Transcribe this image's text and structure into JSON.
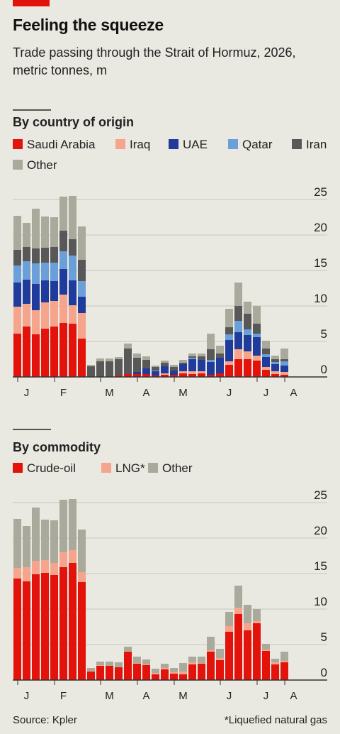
{
  "title": "Feeling the squeeze",
  "subtitle": "Trade passing through the Strait of Hormuz, 2026, metric tonnes, m",
  "source": "Source: Kpler",
  "note": "*Liquefied natural gas",
  "chart_data": [
    {
      "type": "bar",
      "stacked": true,
      "title": "By country of origin",
      "categories": [
        null,
        "J",
        null,
        null,
        null,
        "F",
        null,
        null,
        null,
        null,
        "M",
        null,
        null,
        null,
        "A",
        null,
        null,
        null,
        "M",
        null,
        null,
        null,
        null,
        "J",
        null,
        null,
        null,
        "J",
        null,
        null,
        "A"
      ],
      "ylim": [
        0,
        25
      ],
      "yticks": [
        0,
        5,
        10,
        15,
        20,
        25
      ],
      "grid": true,
      "series": [
        {
          "name": "Saudi Arabia",
          "color": "#e3120b",
          "values": [
            6.1,
            7.1,
            6.0,
            6.8,
            7.1,
            7.6,
            7.5,
            5.4,
            0,
            0,
            0,
            0.2,
            0.4,
            0.4,
            0.4,
            0.2,
            0.3,
            0.3,
            0.5,
            0.4,
            0.5,
            0.3,
            0.5,
            1.7,
            2.5,
            2.5,
            2.3,
            1.0,
            0.4,
            0.3,
            null
          ]
        },
        {
          "name": "Iraq",
          "color": "#f6a48c",
          "values": [
            3.8,
            3.2,
            3.4,
            3.7,
            3.6,
            4.0,
            2.6,
            3.6,
            0,
            0,
            0,
            0,
            0,
            0,
            0,
            0,
            0.2,
            0,
            0.3,
            0.4,
            0.3,
            0,
            0,
            0.5,
            1.4,
            1.1,
            0.7,
            0.4,
            0.4,
            0.4,
            null
          ]
        },
        {
          "name": "UAE",
          "color": "#1f3c9c",
          "values": [
            3.4,
            3.4,
            3.7,
            3.1,
            2.8,
            3.6,
            3.5,
            2.3,
            0,
            0,
            0,
            0,
            0,
            0.3,
            0.8,
            0.6,
            1.0,
            0.6,
            1.0,
            1.7,
            1.6,
            1.8,
            2.2,
            3.0,
            2.4,
            2.3,
            2.6,
            1.4,
            1.0,
            0.9,
            null
          ]
        },
        {
          "name": "Qatar",
          "color": "#6a9fda",
          "values": [
            2.4,
            2.6,
            2.9,
            2.5,
            2.6,
            2.5,
            3.5,
            2.2,
            0,
            0,
            0,
            0,
            0,
            0,
            0,
            0.1,
            0,
            0,
            0,
            0.2,
            0,
            0.3,
            0,
            0.8,
            1.6,
            0.8,
            0.5,
            0.4,
            0.3,
            0.6,
            null
          ]
        },
        {
          "name": "Iran",
          "color": "#585858",
          "values": [
            2.2,
            2.0,
            2.1,
            2.1,
            2.2,
            2.9,
            2.3,
            3.0,
            1.5,
            2.2,
            2.2,
            2.3,
            3.6,
            2.0,
            1.2,
            0.5,
            0.5,
            0.5,
            0.2,
            0.2,
            0.5,
            1.5,
            0.6,
            1.0,
            2.1,
            2.2,
            1.4,
            0.8,
            0.4,
            0.3,
            null
          ]
        },
        {
          "name": "Other",
          "color": "#a9a99c",
          "values": [
            4.8,
            3.4,
            5.6,
            4.4,
            4.2,
            4.8,
            6.1,
            4.7,
            0.2,
            0.4,
            0.4,
            0.3,
            0.7,
            0.6,
            0.5,
            0.2,
            0.3,
            0.3,
            0.4,
            0.4,
            0.4,
            2.2,
            1.1,
            2.6,
            3.3,
            1.7,
            2.5,
            1.1,
            0.5,
            1.5,
            null
          ]
        }
      ]
    },
    {
      "type": "bar",
      "stacked": true,
      "title": "By commodity",
      "categories": [
        null,
        "J",
        null,
        null,
        null,
        "F",
        null,
        null,
        null,
        null,
        "M",
        null,
        null,
        null,
        "A",
        null,
        null,
        null,
        "M",
        null,
        null,
        null,
        null,
        "J",
        null,
        null,
        null,
        "J",
        null,
        null,
        "A"
      ],
      "ylim": [
        0,
        25
      ],
      "yticks": [
        0,
        5,
        10,
        15,
        20,
        25
      ],
      "grid": true,
      "series": [
        {
          "name": "Crude-oil",
          "color": "#e3120b",
          "values": [
            14.3,
            13.9,
            14.9,
            15.1,
            14.8,
            15.9,
            16.5,
            13.8,
            1.2,
            2.0,
            2.0,
            1.8,
            4.0,
            2.3,
            2.1,
            0.8,
            1.5,
            0.9,
            0.8,
            2.2,
            2.3,
            4.0,
            2.8,
            6.8,
            9.3,
            7.0,
            8.0,
            4.1,
            2.2,
            2.5,
            null
          ]
        },
        {
          "name": "LNG*",
          "color": "#f6a48c",
          "values": [
            1.5,
            2.0,
            1.9,
            1.8,
            1.7,
            2.1,
            1.8,
            1.4,
            0.1,
            0.1,
            0,
            0,
            0.1,
            0.1,
            0.1,
            0.2,
            0.2,
            0.2,
            0.4,
            0.3,
            0.1,
            0.2,
            0.3,
            0.8,
            0.9,
            1.0,
            0.3,
            0.2,
            0.3,
            0.2,
            null
          ]
        },
        {
          "name": "Other",
          "color": "#a9a99c",
          "values": [
            6.9,
            5.8,
            7.5,
            5.7,
            6.0,
            7.4,
            7.2,
            6.0,
            0.4,
            0.5,
            0.6,
            0.7,
            0.6,
            0.9,
            0.7,
            0.6,
            0.6,
            0.6,
            1.2,
            0.8,
            0.9,
            1.9,
            1.3,
            2.0,
            3.1,
            2.6,
            1.7,
            0.8,
            0.5,
            1.3,
            null
          ]
        }
      ]
    }
  ]
}
